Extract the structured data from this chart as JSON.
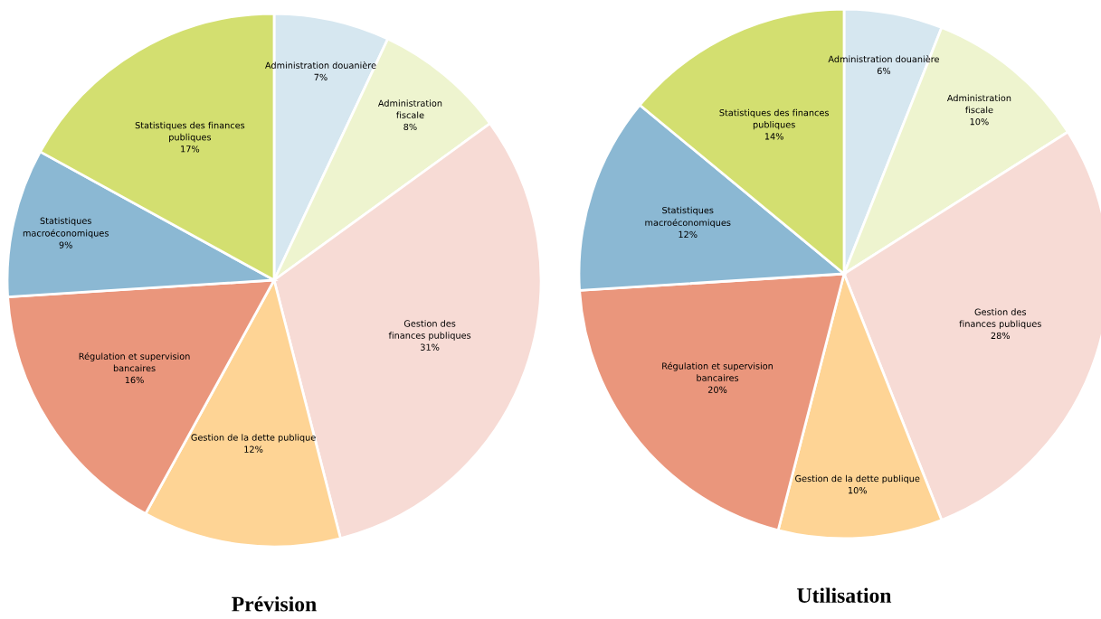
{
  "chart_data": [
    {
      "type": "pie",
      "title": "Prévision",
      "categories": [
        "Administration douanière",
        "Administration\nfiscale",
        "Gestion des\nfinances publiques",
        "Gestion de la dette publique",
        "Régulation et supervision\nbancaires",
        "Statistiques\nmacroéconomiques",
        "Statistiques des finances\npubliques"
      ],
      "values": [
        7,
        8,
        31,
        12,
        16,
        9,
        17
      ],
      "value_labels": [
        "7%",
        "8%",
        "31%",
        "12%",
        "16%",
        "9%",
        "17%"
      ],
      "colors": [
        "#d6e7f0",
        "#eef4cf",
        "#f7dbd5",
        "#fed495",
        "#ea967c",
        "#8bb8d3",
        "#d3df70"
      ],
      "legend": false
    },
    {
      "type": "pie",
      "title": "Utilisation",
      "categories": [
        "Administration douanière",
        "Administration\nfiscale",
        "Gestion des\nfinances publiques",
        "Gestion de la dette publique",
        "Régulation et supervision\nbancaires",
        "Statistiques\nmacroéconomiques",
        "Statistiques des finances\npubliques"
      ],
      "values": [
        6,
        10,
        28,
        10,
        20,
        12,
        14
      ],
      "value_labels": [
        "6%",
        "10%",
        "28%",
        "10%",
        "20%",
        "12%",
        "14%"
      ],
      "colors": [
        "#d6e7f0",
        "#eef4cf",
        "#f7dbd5",
        "#fed495",
        "#ea967c",
        "#8bb8d3",
        "#d3df70"
      ],
      "legend": false
    }
  ]
}
